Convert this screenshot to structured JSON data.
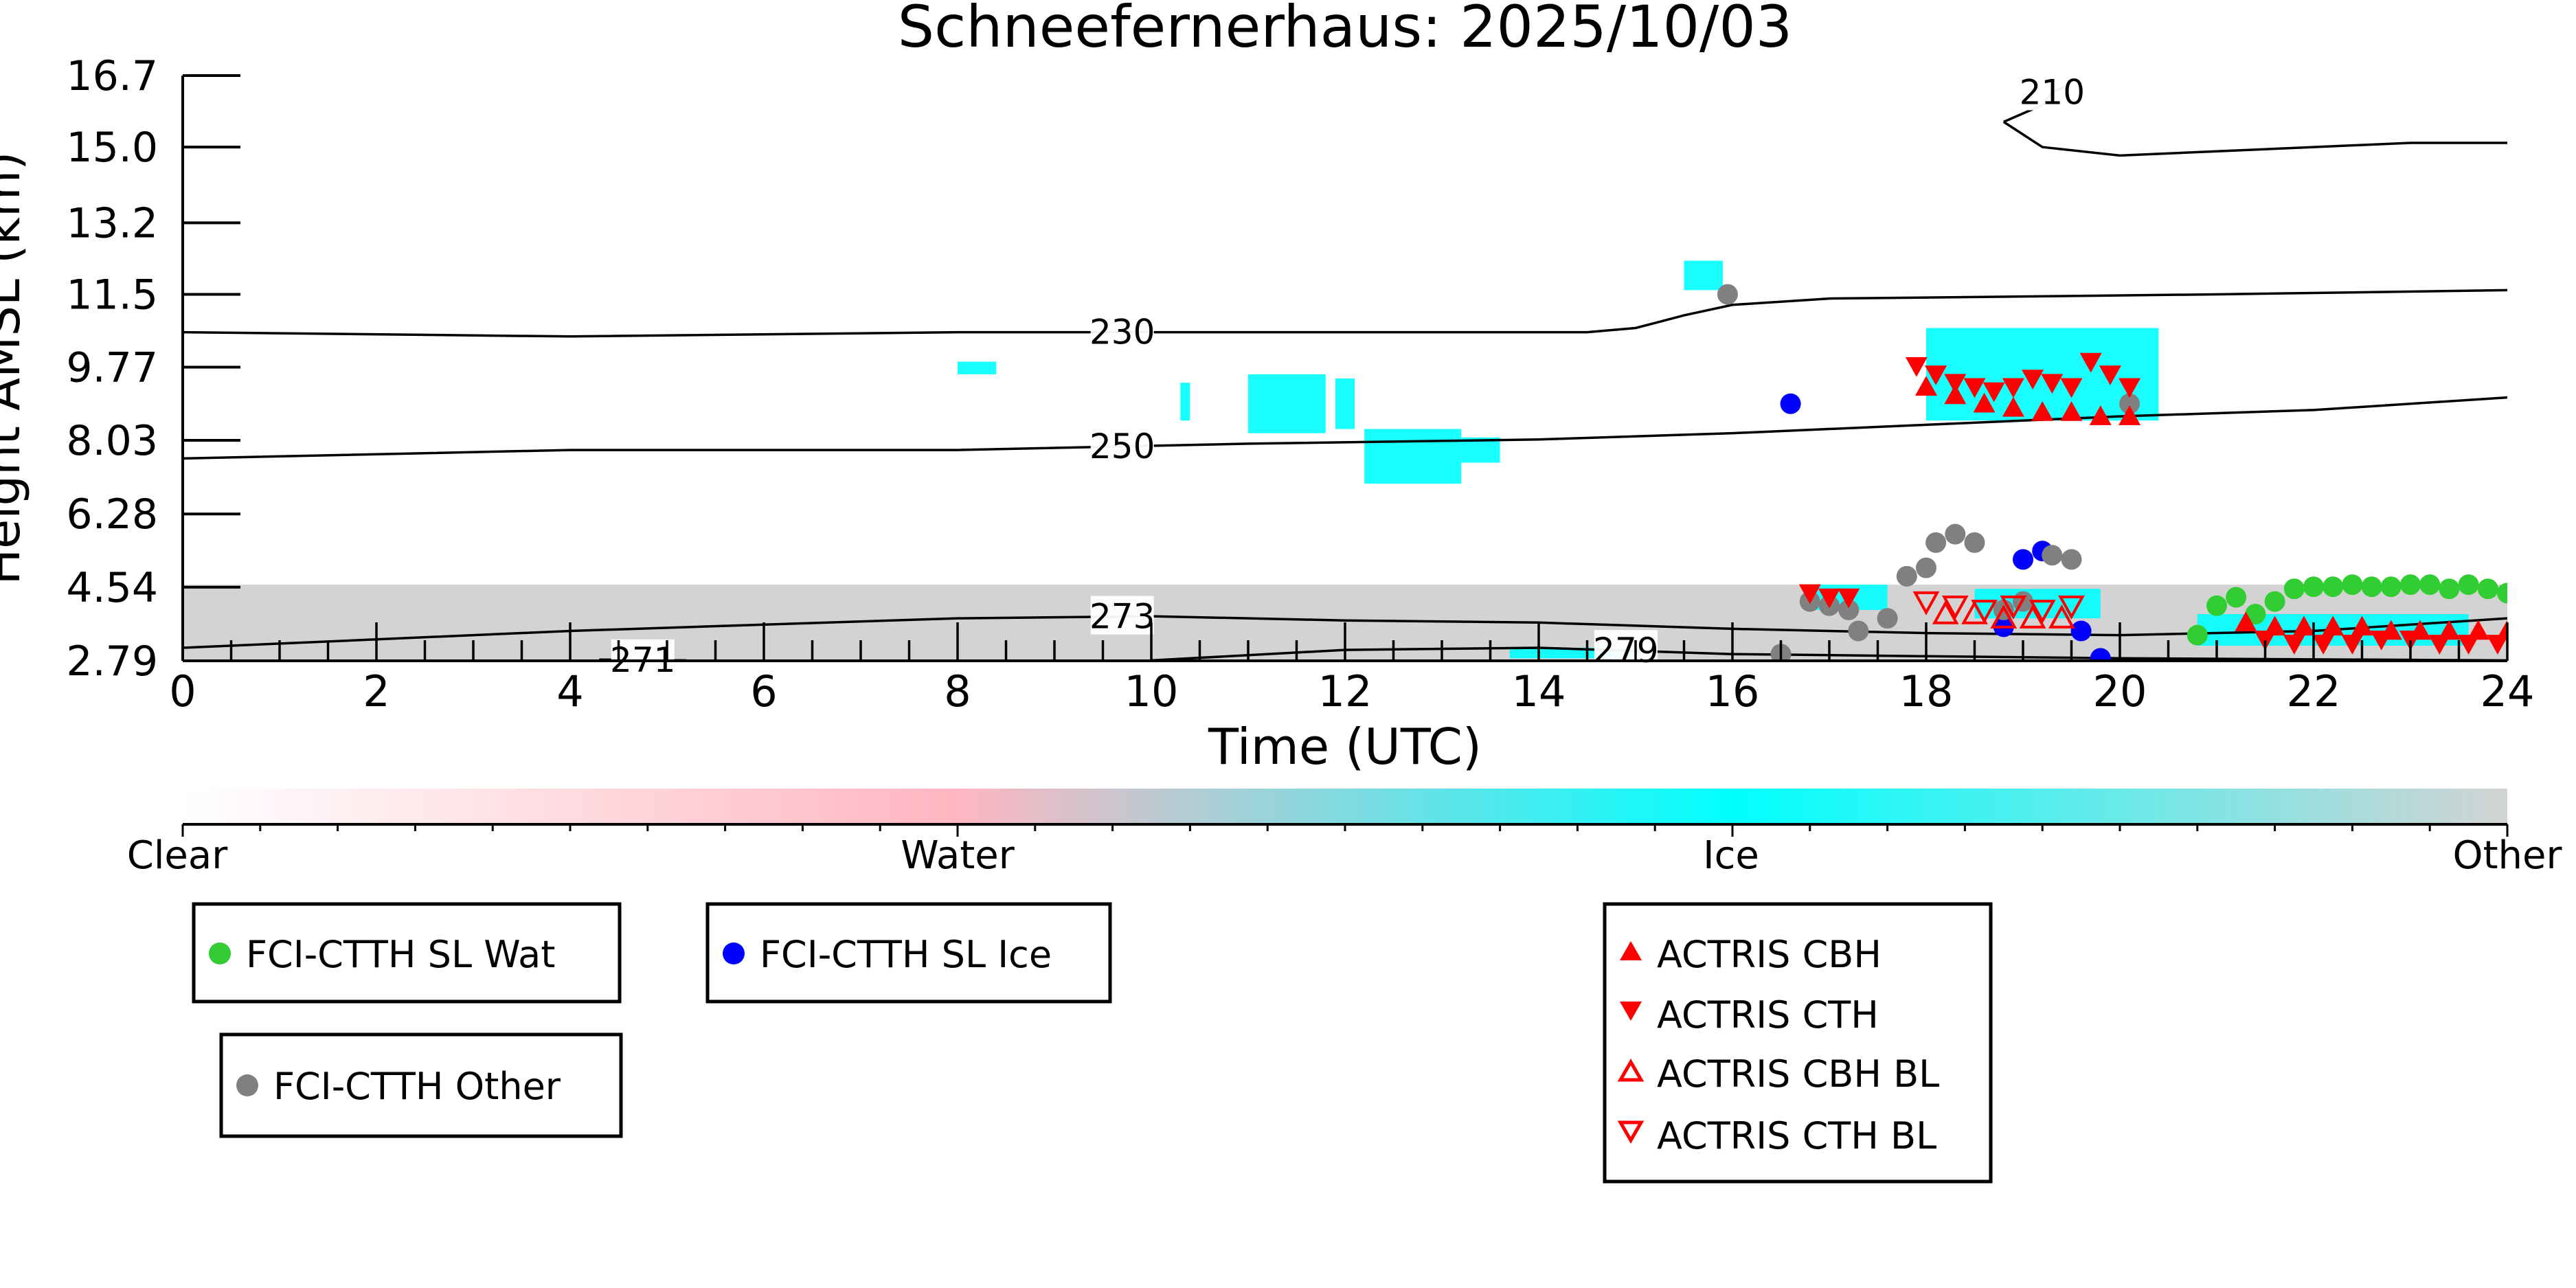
{
  "chart_data": {
    "type": "scatter",
    "title": "Schneefernerhaus: 2025/10/03",
    "xlabel": "Time (UTC)",
    "ylabel": "Height AMSL (km)",
    "xlim": [
      0,
      24
    ],
    "ylim": [
      2.79,
      16.7
    ],
    "x_ticks": [
      "0",
      "2",
      "4",
      "6",
      "8",
      "10",
      "12",
      "14",
      "16",
      "18",
      "20",
      "22",
      "24"
    ],
    "y_ticks": [
      "2.79",
      "4.54",
      "6.28",
      "8.03",
      "9.77",
      "11.5",
      "13.2",
      "15.0",
      "16.7"
    ],
    "colorbar": {
      "labels": [
        "Clear",
        "Water",
        "Ice",
        "Other"
      ],
      "colors": {
        "clear": "#ffffff",
        "water": "#ffb6c1",
        "ice": "#00ffff",
        "other": "#d3d3d3"
      }
    },
    "contours": [
      {
        "label": "230",
        "label_x": 9.7,
        "points": [
          [
            0,
            10.6
          ],
          [
            4,
            10.5
          ],
          [
            8,
            10.6
          ],
          [
            12,
            10.6
          ],
          [
            14.5,
            10.6
          ],
          [
            15,
            10.7
          ],
          [
            15.5,
            11.0
          ],
          [
            16,
            11.25
          ],
          [
            17,
            11.4
          ],
          [
            19,
            11.45
          ],
          [
            21,
            11.5
          ],
          [
            24,
            11.6
          ]
        ]
      },
      {
        "label": "250",
        "label_x": 9.7,
        "points": [
          [
            0,
            7.6
          ],
          [
            4,
            7.8
          ],
          [
            8,
            7.8
          ],
          [
            11,
            7.95
          ],
          [
            14,
            8.05
          ],
          [
            16,
            8.2
          ],
          [
            18,
            8.4
          ],
          [
            20,
            8.6
          ],
          [
            22,
            8.75
          ],
          [
            24,
            9.05
          ]
        ]
      },
      {
        "label": "273",
        "label_x": 9.7,
        "points": [
          [
            0,
            3.1
          ],
          [
            4,
            3.5
          ],
          [
            8,
            3.8
          ],
          [
            10,
            3.85
          ],
          [
            12,
            3.75
          ],
          [
            14,
            3.7
          ],
          [
            16,
            3.55
          ],
          [
            18,
            3.45
          ],
          [
            20,
            3.4
          ],
          [
            22,
            3.5
          ],
          [
            24,
            3.8
          ]
        ]
      },
      {
        "label": "279",
        "label_x": 14.9,
        "points": [
          [
            10,
            2.8
          ],
          [
            12,
            3.05
          ],
          [
            14,
            3.1
          ],
          [
            16,
            2.95
          ],
          [
            18,
            2.9
          ],
          [
            20,
            2.85
          ],
          [
            24,
            2.8
          ]
        ]
      },
      {
        "label": "210",
        "label_x": 19.3,
        "points": [
          [
            18.8,
            15.6
          ],
          [
            19,
            15.8
          ],
          [
            19.2,
            16.0
          ],
          [
            19.3,
            16.3
          ],
          [
            19.5,
            16.5
          ]
        ]
      },
      {
        "label": "",
        "label_x": 0,
        "points": [
          [
            18.8,
            15.6
          ],
          [
            19.2,
            15.0
          ],
          [
            20,
            14.8
          ],
          [
            21,
            14.9
          ],
          [
            22,
            15.0
          ],
          [
            23,
            15.1
          ],
          [
            24,
            15.1
          ]
        ]
      },
      {
        "label": "271",
        "label_x": 4.75,
        "points": [
          [
            4.3,
            2.82
          ],
          [
            5.2,
            2.8
          ]
        ]
      }
    ],
    "background_cloud": [
      {
        "class": "other",
        "x0": 0,
        "x1": 24,
        "y0": 2.79,
        "y1": 4.6,
        "comment": "low-level other/clutter band"
      },
      {
        "class": "ice",
        "x0": 10.3,
        "x1": 10.4,
        "y0": 8.5,
        "y1": 9.4
      },
      {
        "class": "ice",
        "x0": 11.0,
        "x1": 11.8,
        "y0": 8.2,
        "y1": 9.6
      },
      {
        "class": "ice",
        "x0": 11.9,
        "x1": 12.1,
        "y0": 8.3,
        "y1": 9.5
      },
      {
        "class": "ice",
        "x0": 12.2,
        "x1": 13.2,
        "y0": 7.0,
        "y1": 8.3
      },
      {
        "class": "ice",
        "x0": 13.2,
        "x1": 13.6,
        "y0": 7.5,
        "y1": 8.1
      },
      {
        "class": "ice",
        "x0": 8.0,
        "x1": 8.4,
        "y0": 9.6,
        "y1": 9.9
      },
      {
        "class": "ice",
        "x0": 15.5,
        "x1": 15.9,
        "y0": 11.6,
        "y1": 12.3
      },
      {
        "class": "ice",
        "x0": 18.0,
        "x1": 20.4,
        "y0": 8.5,
        "y1": 10.7
      },
      {
        "class": "ice",
        "x0": 16.8,
        "x1": 17.6,
        "y0": 4.0,
        "y1": 4.6
      },
      {
        "class": "ice",
        "x0": 18.5,
        "x1": 19.8,
        "y0": 3.8,
        "y1": 4.5
      },
      {
        "class": "ice",
        "x0": 20.8,
        "x1": 23.6,
        "y0": 3.15,
        "y1": 3.9
      },
      {
        "class": "ice",
        "x0": 13.7,
        "x1": 15.0,
        "y0": 2.85,
        "y1": 3.1
      }
    ],
    "series": [
      {
        "name": "FCI-CTTH SL Wat",
        "marker": "circle",
        "color": "#32cd32",
        "x": [
          20.8,
          21.0,
          21.2,
          21.4,
          21.6,
          21.8,
          22.0,
          22.2,
          22.4,
          22.6,
          22.8,
          23.0,
          23.2,
          23.4,
          23.6,
          23.8,
          24.0
        ],
        "y": [
          3.4,
          4.1,
          4.3,
          3.9,
          4.2,
          4.5,
          4.55,
          4.55,
          4.6,
          4.55,
          4.55,
          4.6,
          4.6,
          4.5,
          4.6,
          4.5,
          4.4
        ]
      },
      {
        "name": "FCI-CTTH SL Ice",
        "marker": "circle",
        "color": "#0000ff",
        "x": [
          16.6,
          18.8,
          19.0,
          19.2,
          19.6,
          19.8
        ],
        "y": [
          8.9,
          3.6,
          5.2,
          5.4,
          3.5,
          2.85
        ]
      },
      {
        "name": "FCI-CTTH Other",
        "marker": "circle",
        "color": "#808080",
        "x": [
          15.95,
          16.8,
          17.0,
          17.2,
          17.3,
          17.6,
          17.8,
          18.0,
          18.1,
          18.3,
          18.5,
          18.8,
          19.0,
          19.3,
          19.5,
          20.1,
          16.5
        ],
        "y": [
          11.5,
          4.2,
          4.1,
          4.0,
          3.5,
          3.8,
          4.8,
          5.0,
          5.6,
          5.8,
          5.6,
          4.0,
          4.2,
          5.3,
          5.2,
          8.9,
          2.95
        ]
      },
      {
        "name": "ACTRIS CBH",
        "marker": "triangle-up",
        "color": "#ff0000",
        "x": [
          18.0,
          18.3,
          18.6,
          18.9,
          19.2,
          19.5,
          19.8,
          20.1,
          21.3,
          21.6,
          21.9,
          22.2,
          22.5,
          22.8,
          23.1,
          23.4,
          23.7,
          24.0
        ],
        "y": [
          9.3,
          9.1,
          8.9,
          8.8,
          8.7,
          8.7,
          8.6,
          8.6,
          3.7,
          3.6,
          3.6,
          3.6,
          3.6,
          3.5,
          3.5,
          3.5,
          3.5,
          3.5
        ]
      },
      {
        "name": "ACTRIS CTH",
        "marker": "triangle-down",
        "color": "#ff0000",
        "x": [
          17.9,
          18.1,
          18.3,
          18.5,
          18.7,
          18.9,
          19.1,
          19.3,
          19.5,
          19.7,
          19.9,
          20.1,
          21.5,
          21.8,
          22.1,
          22.4,
          22.7,
          23.0,
          23.3,
          23.6,
          23.9,
          16.8,
          17.0,
          17.2
        ],
        "y": [
          9.8,
          9.6,
          9.4,
          9.3,
          9.2,
          9.3,
          9.5,
          9.4,
          9.3,
          9.9,
          9.6,
          9.3,
          3.3,
          3.2,
          3.2,
          3.2,
          3.3,
          3.3,
          3.2,
          3.2,
          3.2,
          4.4,
          4.3,
          4.3
        ]
      },
      {
        "name": "ACTRIS CBH BL",
        "marker": "triangle-up-open",
        "color": "#ff0000",
        "x": [
          18.2,
          18.5,
          18.8,
          19.1,
          19.4
        ],
        "y": [
          3.9,
          3.9,
          3.8,
          3.8,
          3.8
        ]
      },
      {
        "name": "ACTRIS CTH BL",
        "marker": "triangle-down-open",
        "color": "#ff0000",
        "x": [
          18.0,
          18.3,
          18.6,
          18.9,
          19.2,
          19.5
        ],
        "y": [
          4.2,
          4.1,
          4.0,
          4.1,
          4.0,
          4.1
        ]
      }
    ],
    "legend_boxes": [
      {
        "entries": [
          "FCI-CTTH SL Wat"
        ]
      },
      {
        "entries": [
          "FCI-CTTH SL Ice"
        ]
      },
      {
        "entries": [
          "FCI-CTTH Other"
        ]
      },
      {
        "entries": [
          "ACTRIS CBH",
          "ACTRIS CTH",
          "ACTRIS CBH BL",
          "ACTRIS CTH BL"
        ]
      }
    ],
    "grid": false
  }
}
